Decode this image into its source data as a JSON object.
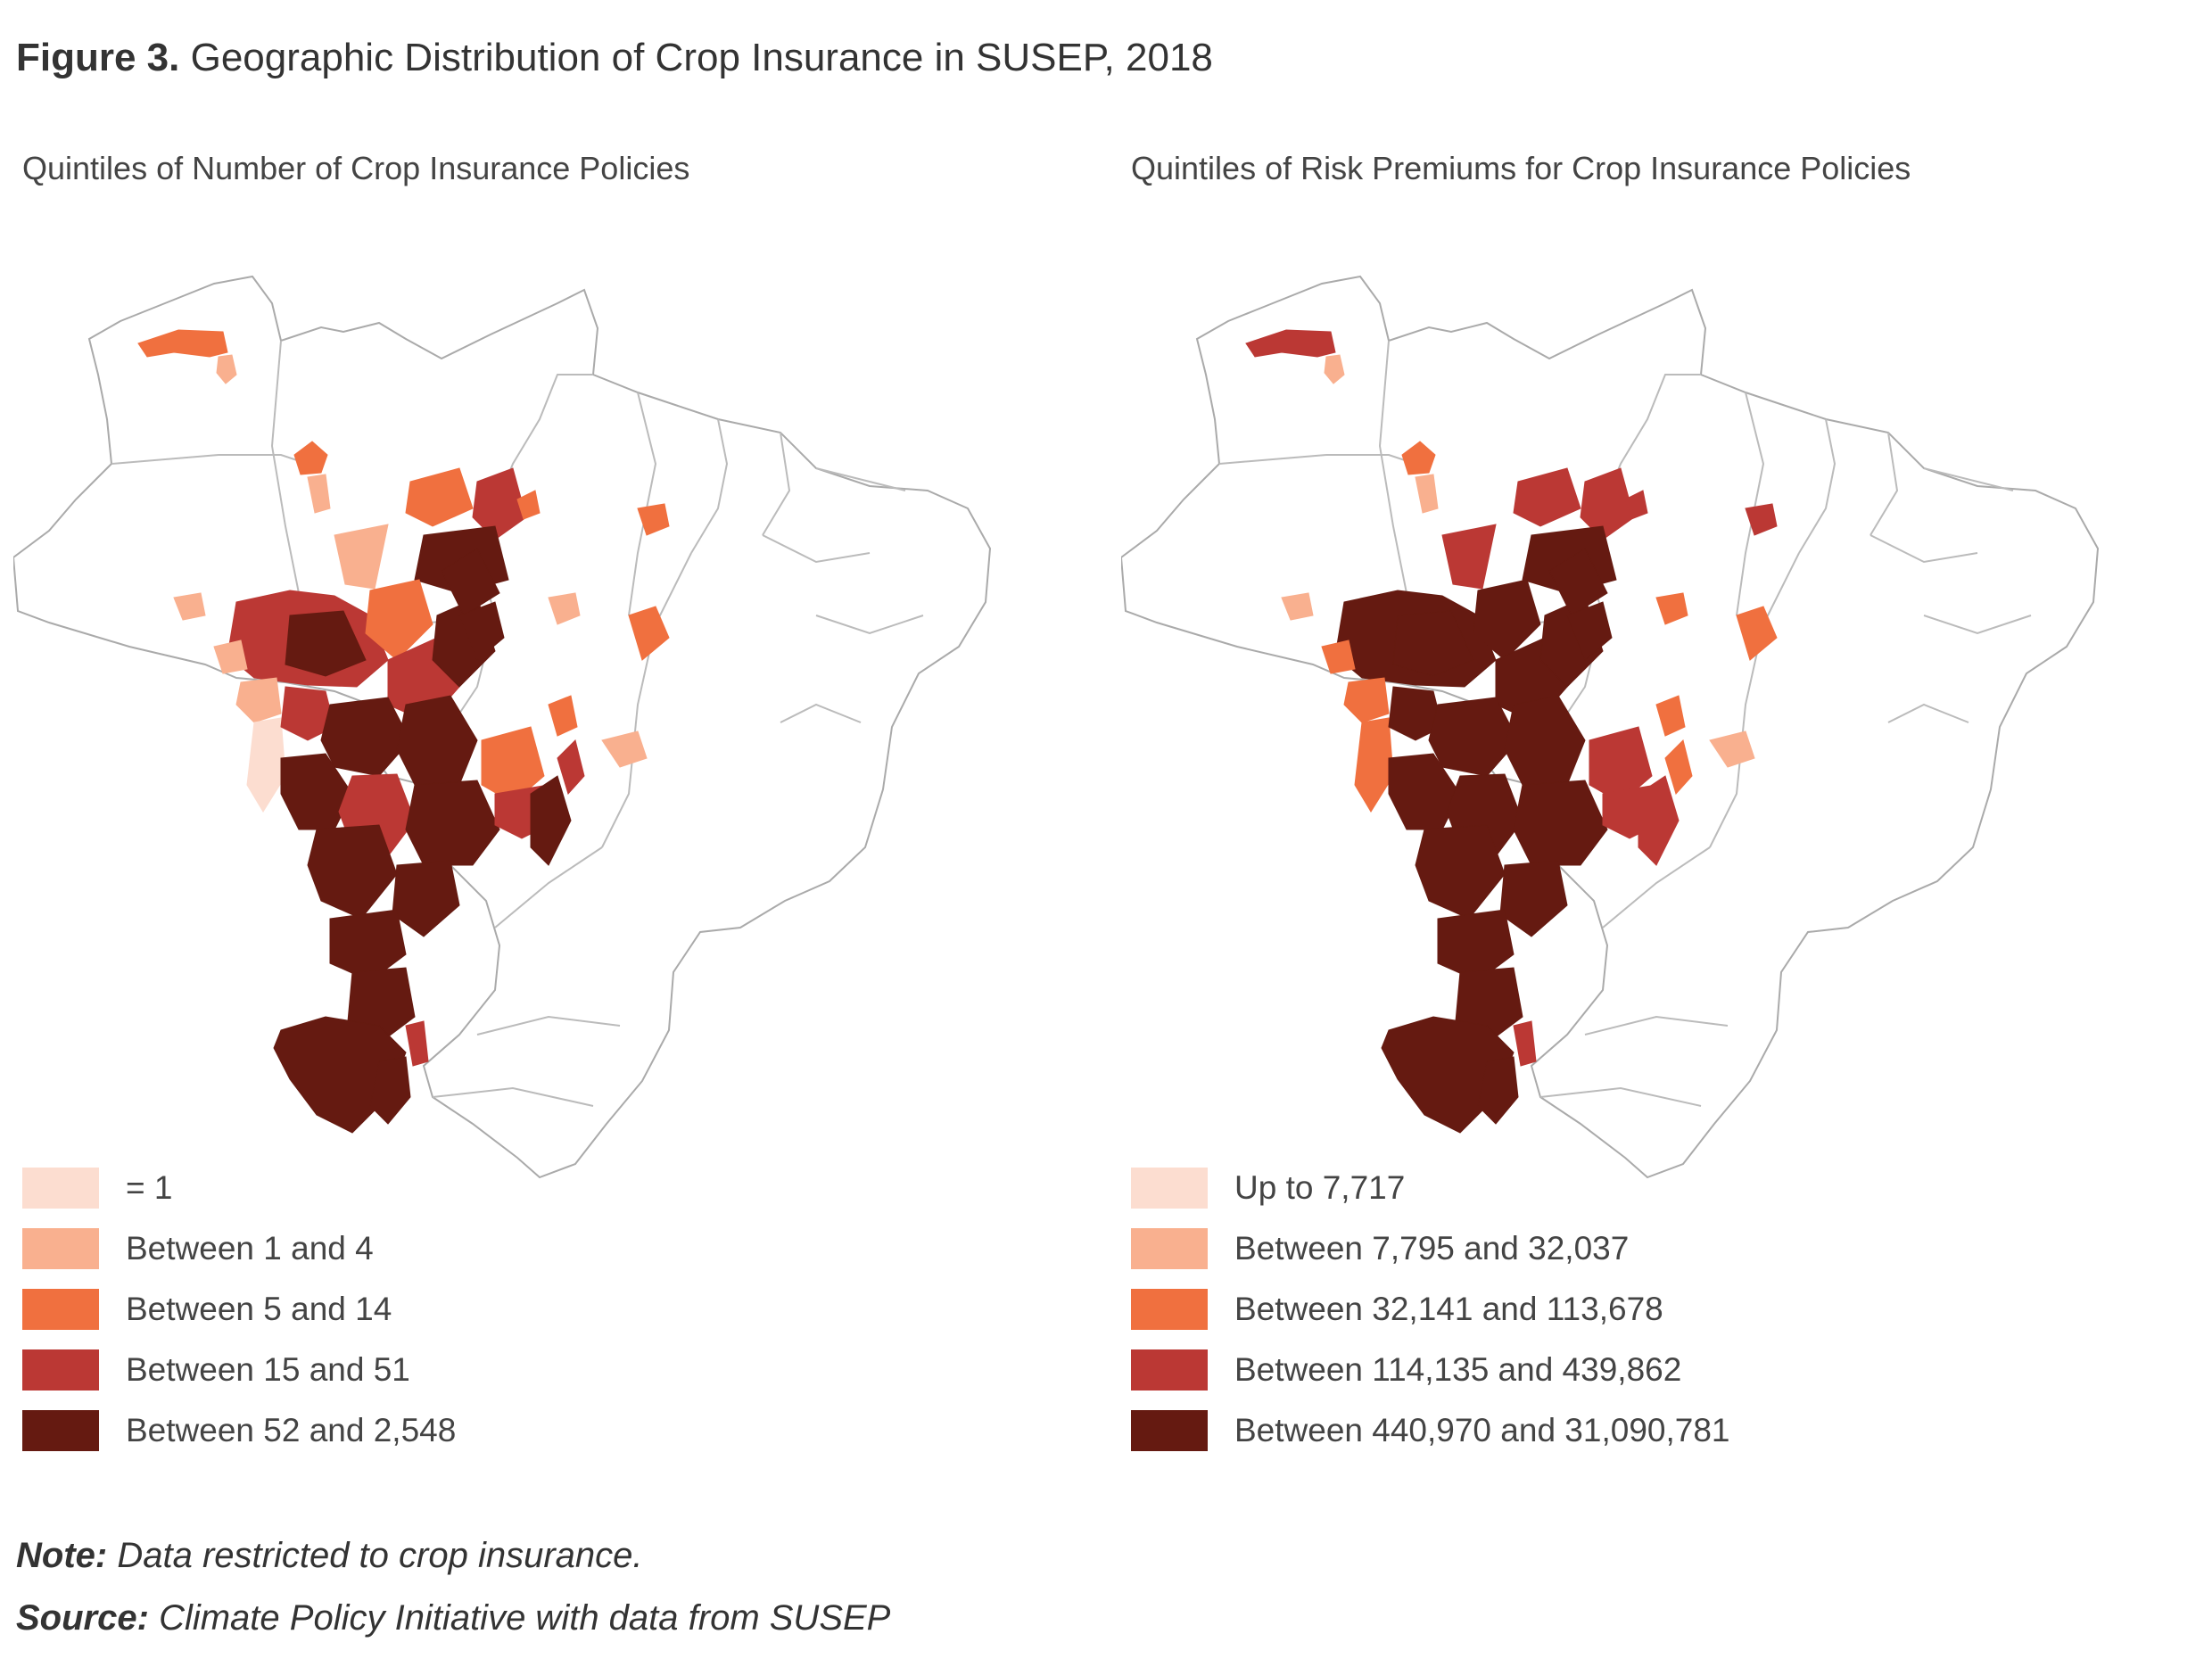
{
  "figure": {
    "label": "Figure 3.",
    "title": "Geographic Distribution of Crop Insurance in SUSEP, 2018"
  },
  "maps": [
    {
      "subtitle": "Quintiles of Number of Crop Insurance Policies",
      "legend": [
        {
          "label": "= 1",
          "color": "#fcddd0"
        },
        {
          "label": "Between 1 and 4",
          "color": "#f9b08f"
        },
        {
          "label": "Between 5 and 14",
          "color": "#f0703f"
        },
        {
          "label": "Between 15 and 51",
          "color": "#bb3834"
        },
        {
          "label": "Between 52 and 2,548",
          "color": "#651a11"
        }
      ]
    },
    {
      "subtitle": "Quintiles of Risk Premiums for Crop Insurance Policies",
      "legend": [
        {
          "label": "Up to 7,717",
          "color": "#fcddd0"
        },
        {
          "label": "Between 7,795 and 32,037",
          "color": "#f9b08f"
        },
        {
          "label": "Between 32,141 and 113,678",
          "color": "#f0703f"
        },
        {
          "label": "Between 114,135 and 439,862",
          "color": "#bb3834"
        },
        {
          "label": "Between 440,970 and 31,090,781",
          "color": "#651a11"
        }
      ]
    }
  ],
  "note": {
    "label": "Note:",
    "text": "Data restricted to crop insurance."
  },
  "source": {
    "label": "Source:",
    "text": "Climate Policy Initiative with data from SUSEP"
  }
}
